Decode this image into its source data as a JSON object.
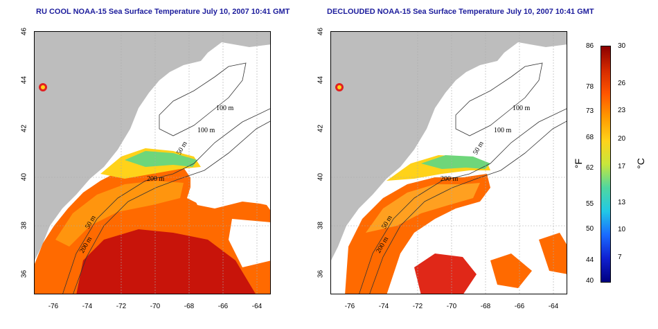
{
  "panels": [
    {
      "title": "RU COOL NOAA-15 Sea Surface Temperature July 10, 2007 10:41 GMT",
      "contours": [
        "100 m",
        "100 m",
        "50 m",
        "200 m",
        "50 m",
        "200 m"
      ]
    },
    {
      "title": "DECLOUDED NOAA-15 Sea Surface Temperature July 10, 2007 10:41 GMT",
      "contours": [
        "100 m",
        "100 m",
        "50 m",
        "200 m",
        "50 m",
        "200 m"
      ]
    }
  ],
  "axes": {
    "lat_ticks": [
      "46",
      "44",
      "42",
      "40",
      "38",
      "36"
    ],
    "lon_ticks": [
      "-76",
      "-74",
      "-72",
      "-70",
      "-68",
      "-66",
      "-64"
    ]
  },
  "colorbar": {
    "fahrenheit_label": "°F",
    "celsius_label": "°C",
    "fahrenheit_ticks": [
      "86",
      "78",
      "73",
      "68",
      "62",
      "55",
      "50",
      "44",
      "40"
    ],
    "celsius_ticks": [
      "30",
      "26",
      "23",
      "20",
      "17",
      "13",
      "10",
      "7"
    ],
    "colors": [
      "#8b0000",
      "#d42a00",
      "#ff5500",
      "#ff9900",
      "#ffd21a",
      "#c8e63c",
      "#4fd7a0",
      "#22c8e6",
      "#1a6bff",
      "#1020d0",
      "#000080"
    ]
  }
}
